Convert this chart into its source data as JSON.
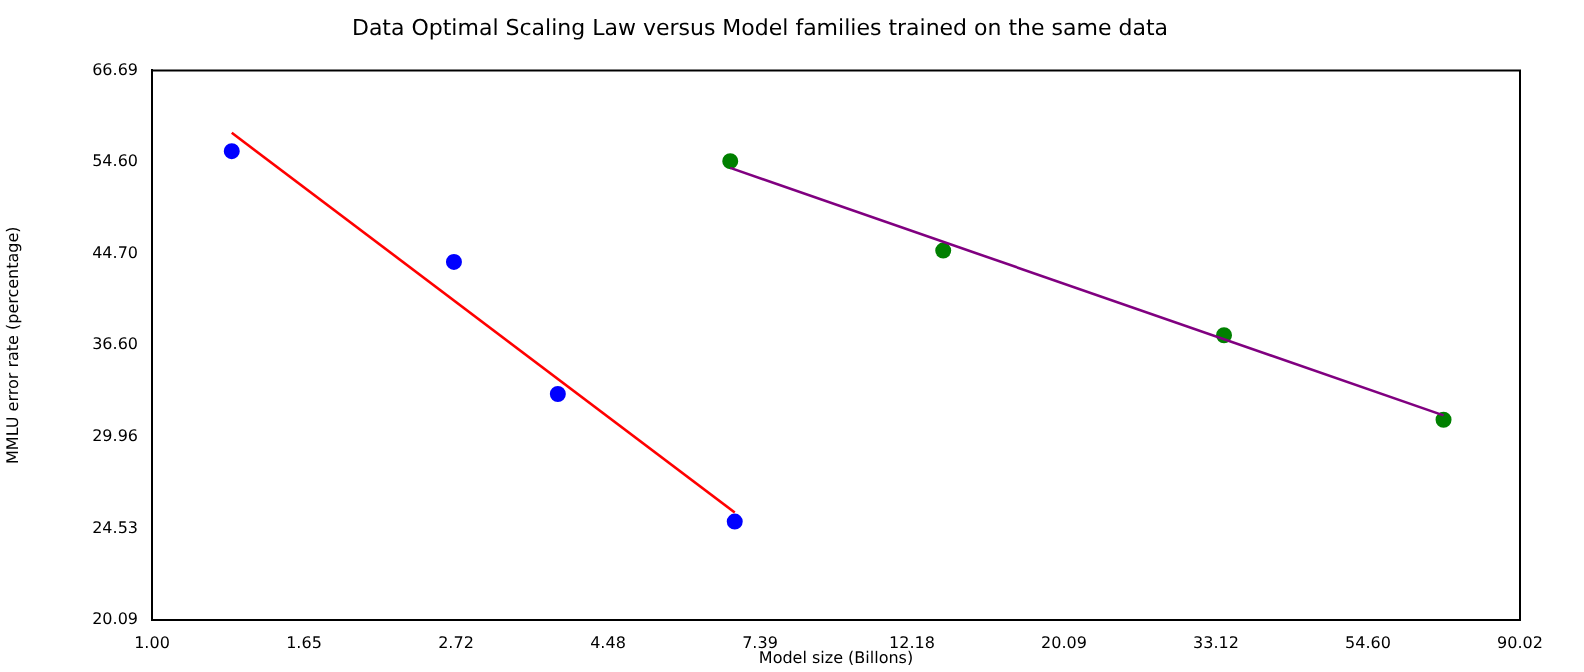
{
  "chart_data": {
    "type": "scatter",
    "title": "Data Optimal Scaling Law versus Model families trained on the same data",
    "xlabel": "Model size (Billons)",
    "ylabel": "MMLU error rate (percentage)",
    "log": "xy",
    "grid": false,
    "legend": false,
    "xlim": [
      1,
      90.0171
    ],
    "ylim": [
      20.0855,
      66.6863
    ],
    "xticks": [
      {
        "value": 1,
        "label": "1.00"
      },
      {
        "value": 1.6487,
        "label": "1.65"
      },
      {
        "value": 2.7183,
        "label": "2.72"
      },
      {
        "value": 4.4817,
        "label": "4.48"
      },
      {
        "value": 7.3891,
        "label": "7.39"
      },
      {
        "value": 12.1825,
        "label": "12.18"
      },
      {
        "value": 20.0855,
        "label": "20.09"
      },
      {
        "value": 33.1155,
        "label": "33.12"
      },
      {
        "value": 54.5982,
        "label": "54.60"
      },
      {
        "value": 90.0171,
        "label": "90.02"
      }
    ],
    "yticks": [
      {
        "value": 20.0855,
        "label": "20.09"
      },
      {
        "value": 24.5325,
        "label": "24.53"
      },
      {
        "value": 29.9641,
        "label": "29.96"
      },
      {
        "value": 36.5982,
        "label": "36.60"
      },
      {
        "value": 44.7012,
        "label": "44.70"
      },
      {
        "value": 54.5982,
        "label": "54.60"
      },
      {
        "value": 66.6863,
        "label": "66.69"
      }
    ],
    "series": [
      {
        "type": "line",
        "color": "#ff0000",
        "marker": "none",
        "x": [
          1.3,
          6.8
        ],
        "values": [
          58.2,
          25.4
        ]
      },
      {
        "type": "line",
        "color": "#800080",
        "marker": "none",
        "x": [
          6.7,
          70
        ],
        "values": [
          53.9,
          31.4
        ]
      },
      {
        "type": "scatter",
        "color": "#0000ff",
        "marker": "circle",
        "x": [
          1.3,
          2.7,
          3.8,
          6.8
        ],
        "values": [
          55.9,
          43.9,
          32.9,
          24.9
        ]
      },
      {
        "type": "scatter",
        "color": "#008000",
        "marker": "circle",
        "x": [
          6.7,
          13.5,
          34,
          70
        ],
        "values": [
          54.7,
          45.0,
          37.4,
          31.1
        ]
      }
    ]
  }
}
